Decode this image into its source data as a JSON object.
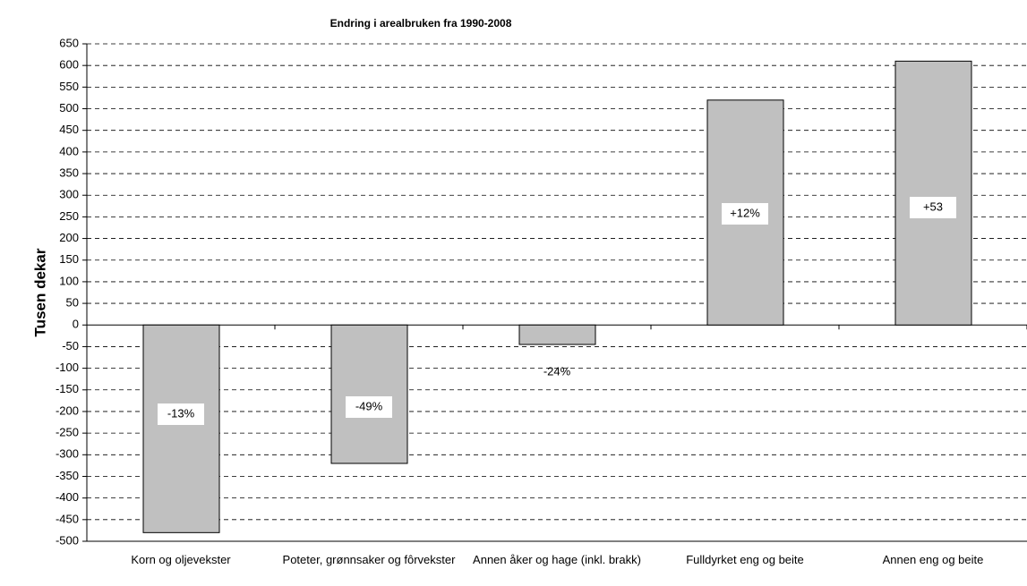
{
  "chart_data": {
    "type": "bar",
    "title": "Endring i arealbruken fra 1990-2008",
    "y_label": "Tusen dekar",
    "categories": [
      "Korn og oljevekster",
      "Poteter, grønnsaker og fôrvekster",
      "Annen åker og hage (inkl. brakk)",
      "Fulldyrket eng og beite",
      "Annen eng og beite"
    ],
    "values": [
      -480,
      -320,
      -45,
      520,
      610
    ],
    "annotations": [
      "-13%",
      "-49%",
      "-24%",
      "+12%",
      "+53"
    ],
    "color": "#c0c0c0",
    "ylim": [
      -500,
      650
    ],
    "yticks": [
      -500,
      -450,
      -400,
      -350,
      -300,
      -250,
      -200,
      -150,
      -100,
      -50,
      0,
      50,
      100,
      150,
      200,
      250,
      300,
      350,
      400,
      450,
      500,
      550,
      600,
      650
    ],
    "grid": true
  }
}
